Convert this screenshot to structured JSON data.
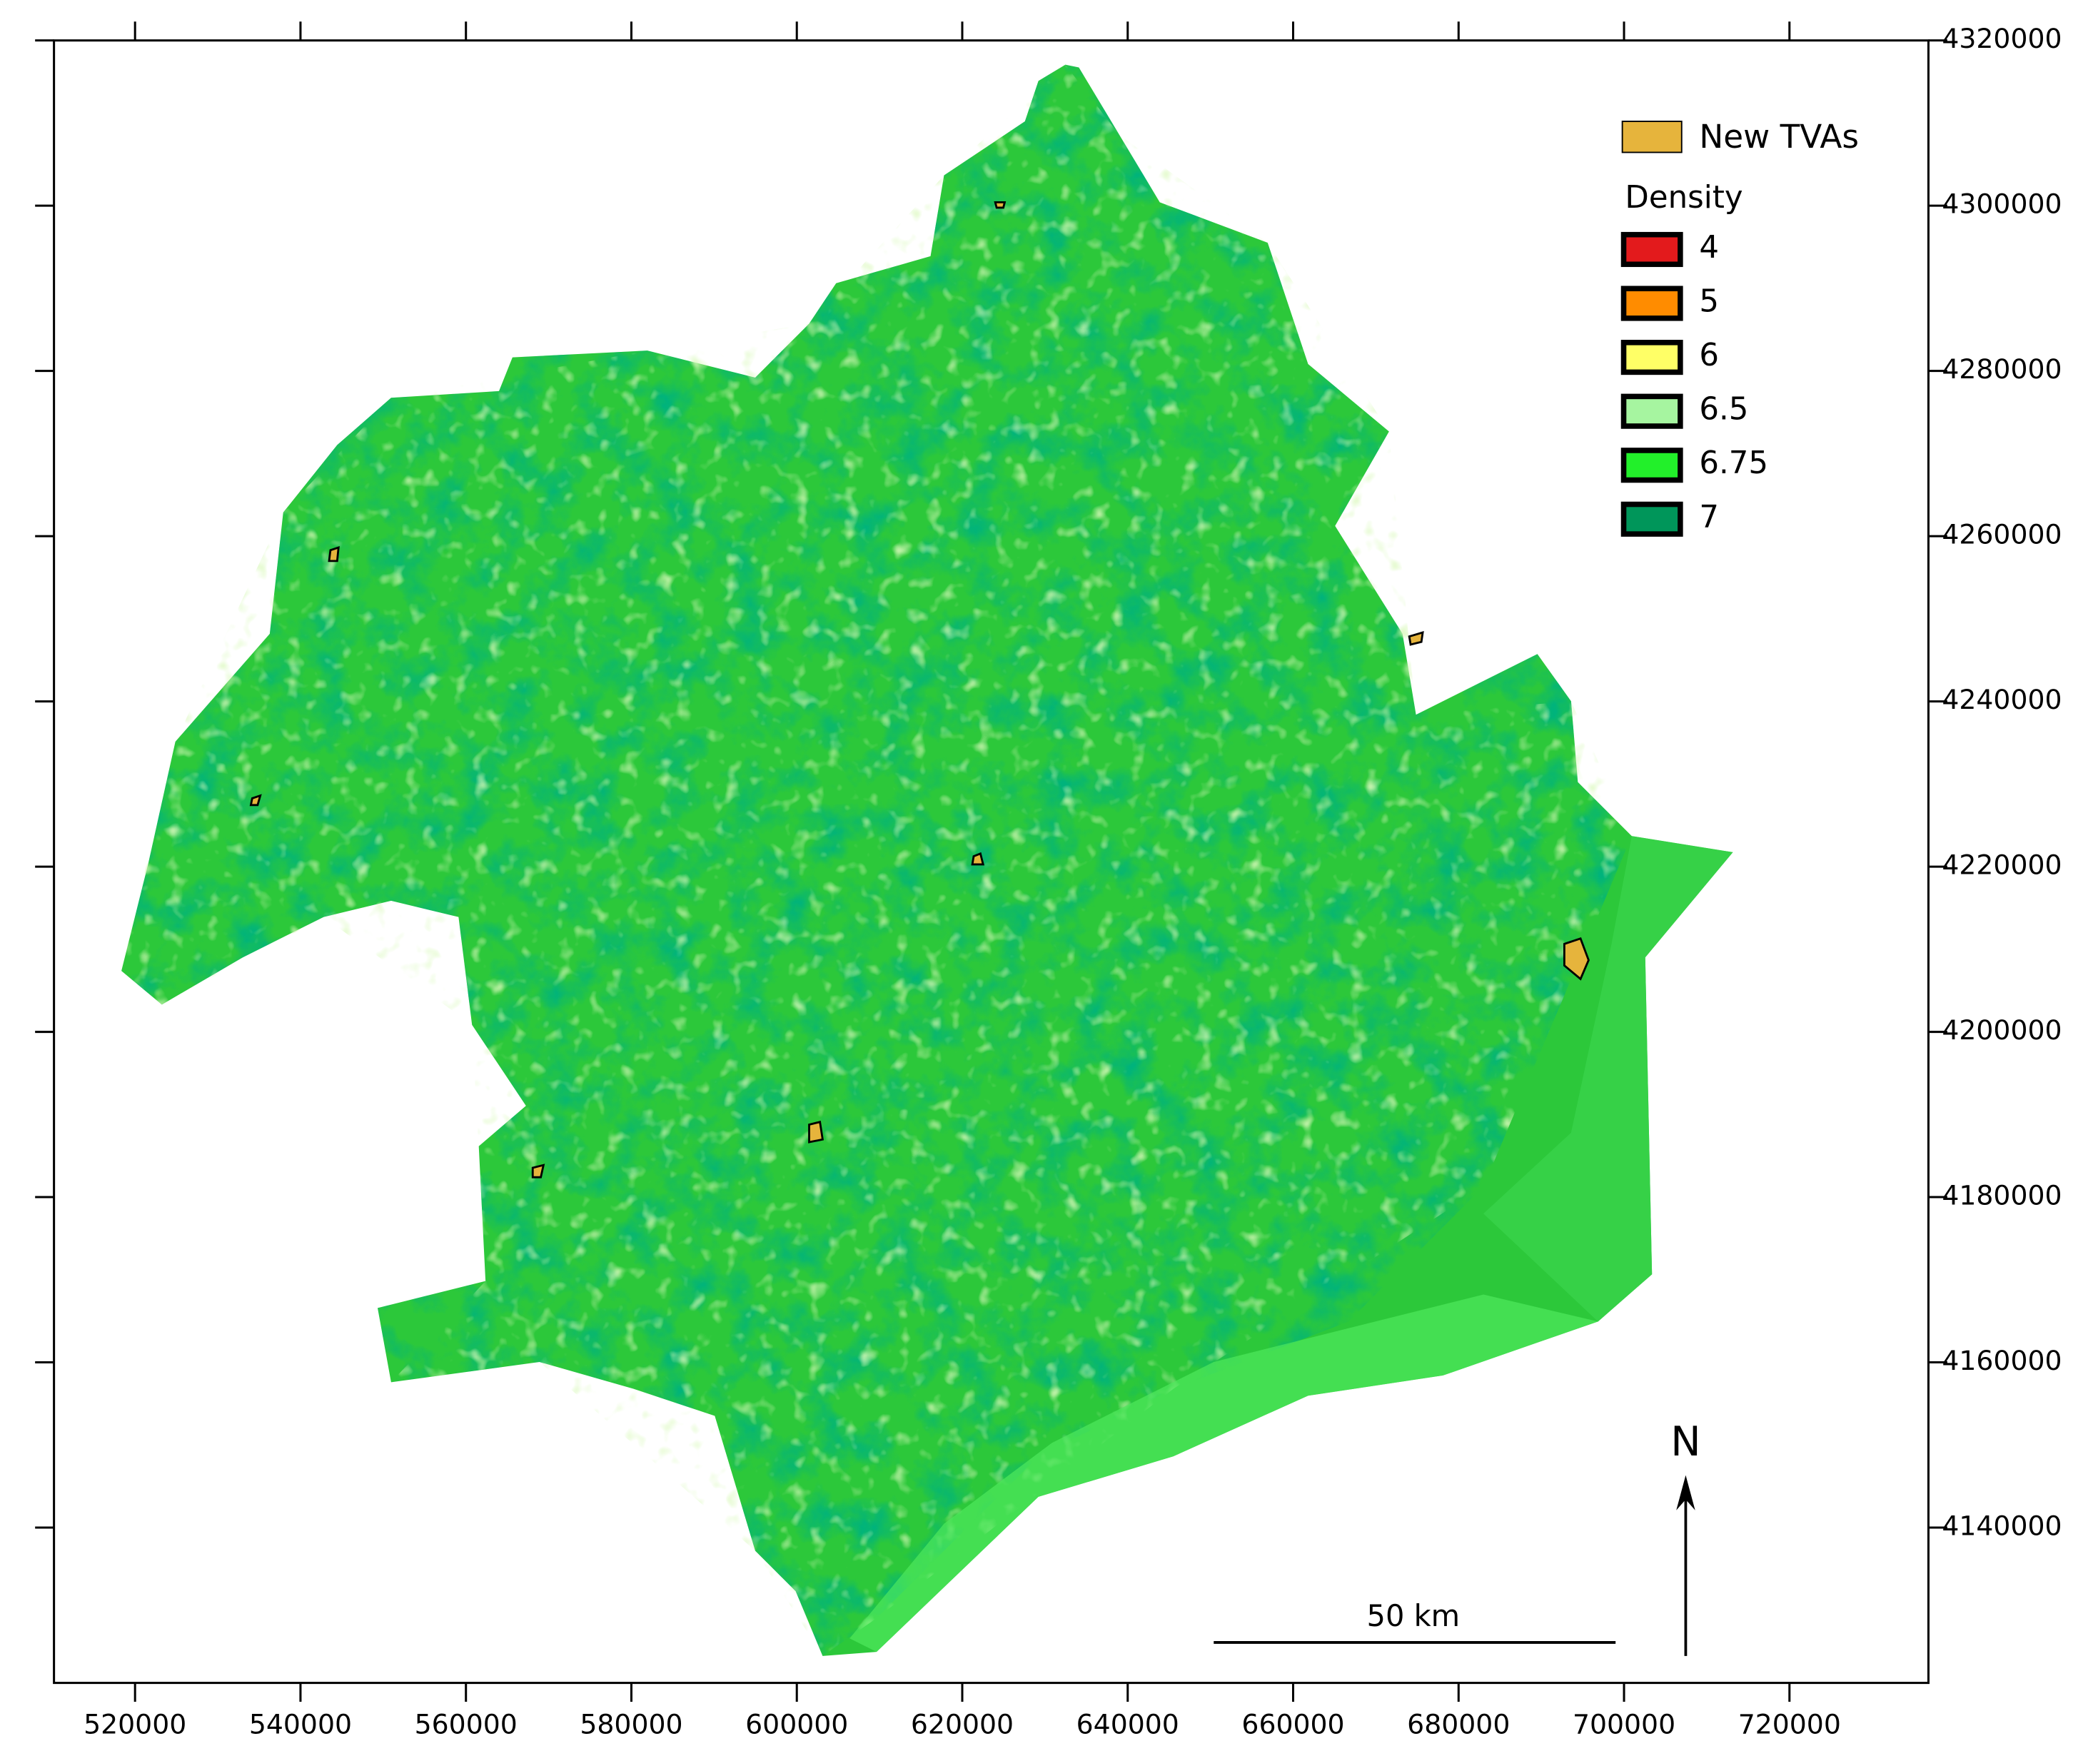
{
  "map": {
    "xlim": [
      510200,
      736800
    ],
    "ylim": [
      4121200,
      4320000
    ],
    "xticks": [
      520000,
      540000,
      560000,
      580000,
      600000,
      620000,
      640000,
      660000,
      680000,
      700000,
      720000
    ],
    "yticks": [
      4140000,
      4160000,
      4180000,
      4200000,
      4220000,
      4240000,
      4260000,
      4280000,
      4300000,
      4320000
    ],
    "legend": {
      "tva": {
        "label": "New TVAs",
        "color": "#e6b43c"
      },
      "title": "Density",
      "items": [
        {
          "label": 4,
          "color": "#e31a1c"
        },
        {
          "label": 5,
          "color": "#ff8c00"
        },
        {
          "label": 6,
          "color": "#ffff66"
        },
        {
          "label": 6.5,
          "color": "#a6f5a0"
        },
        {
          "label": 6.75,
          "color": "#22f02a"
        },
        {
          "label": 7,
          "color": "#00965a"
        }
      ]
    },
    "scale_bar": "50 km",
    "north": "N"
  }
}
